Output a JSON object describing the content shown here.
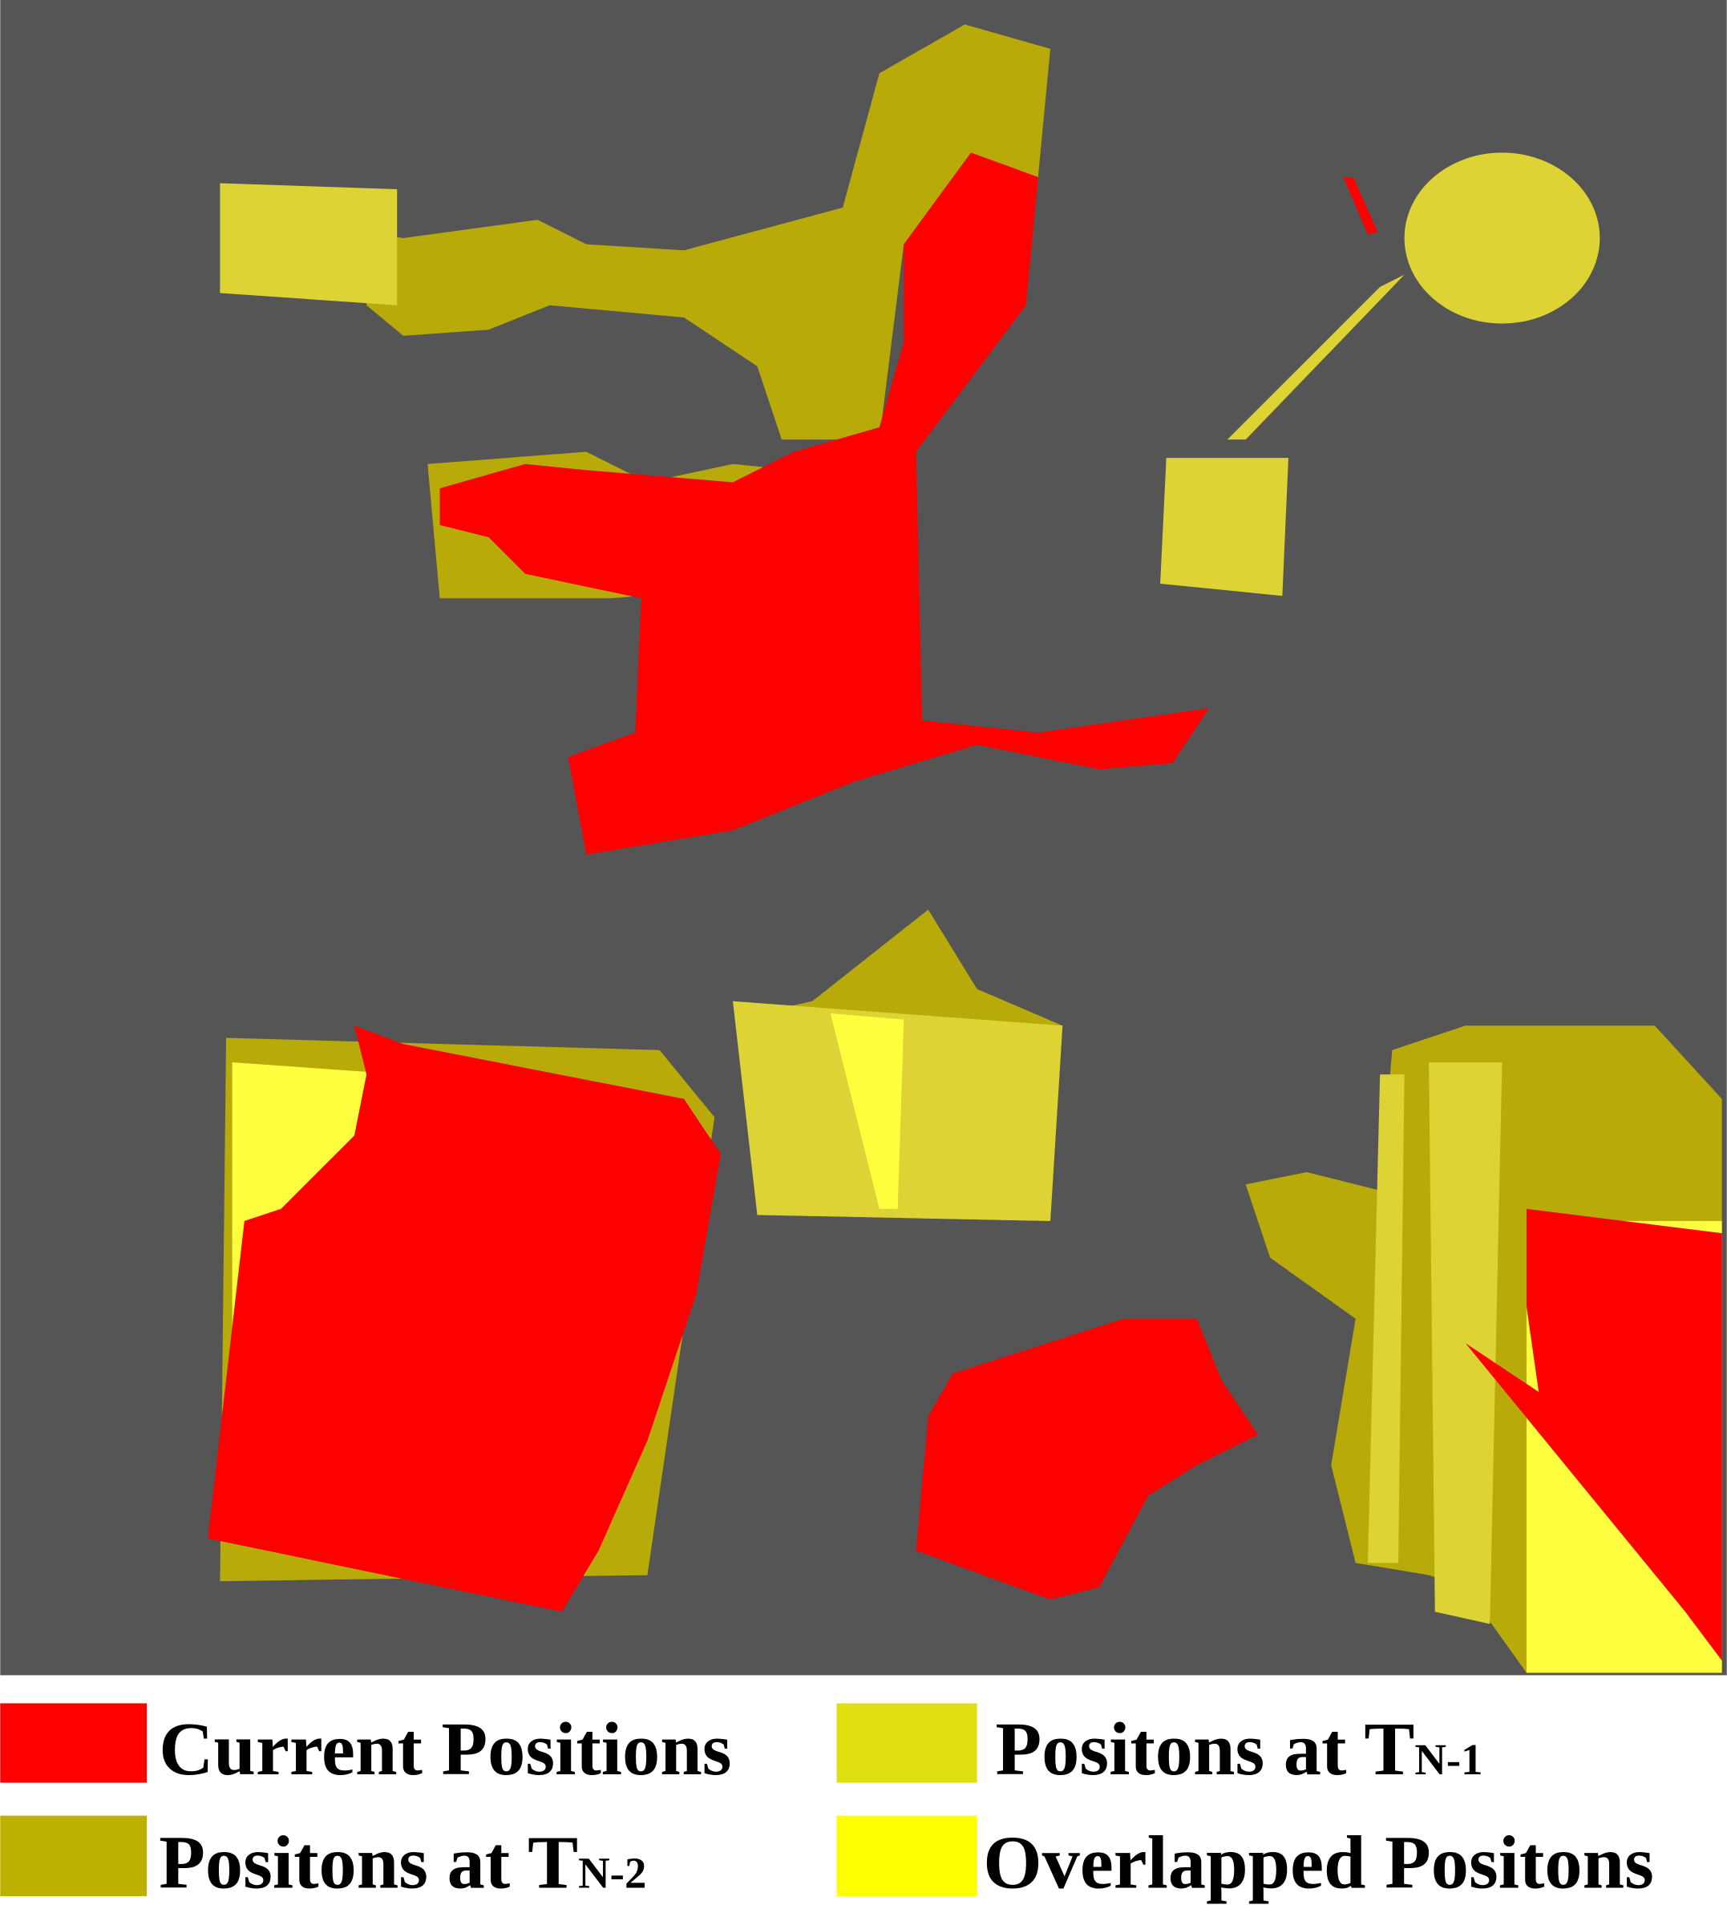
{
  "legend": {
    "items": [
      {
        "label": "Current Positions"
      },
      {
        "label": "Positons at T",
        "subscript": "N-1"
      },
      {
        "label": "Positons at T",
        "subscript": "N-2"
      },
      {
        "label": "Overlapped Positons"
      }
    ]
  }
}
